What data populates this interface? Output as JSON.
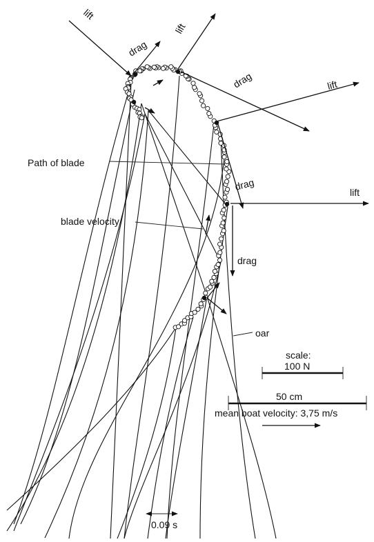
{
  "labels": {
    "path_of_blade": "Path of blade",
    "blade_velocity": "blade velocity",
    "oar": "oar",
    "scale": "scale:",
    "force_scale": "100 N",
    "length_scale": "50 cm",
    "mean_boat_velocity": "mean boat velocity: 3,75 m/s",
    "time_interval": "0.09 s"
  },
  "forces": {
    "lift": "lift",
    "drag": "drag"
  }
}
